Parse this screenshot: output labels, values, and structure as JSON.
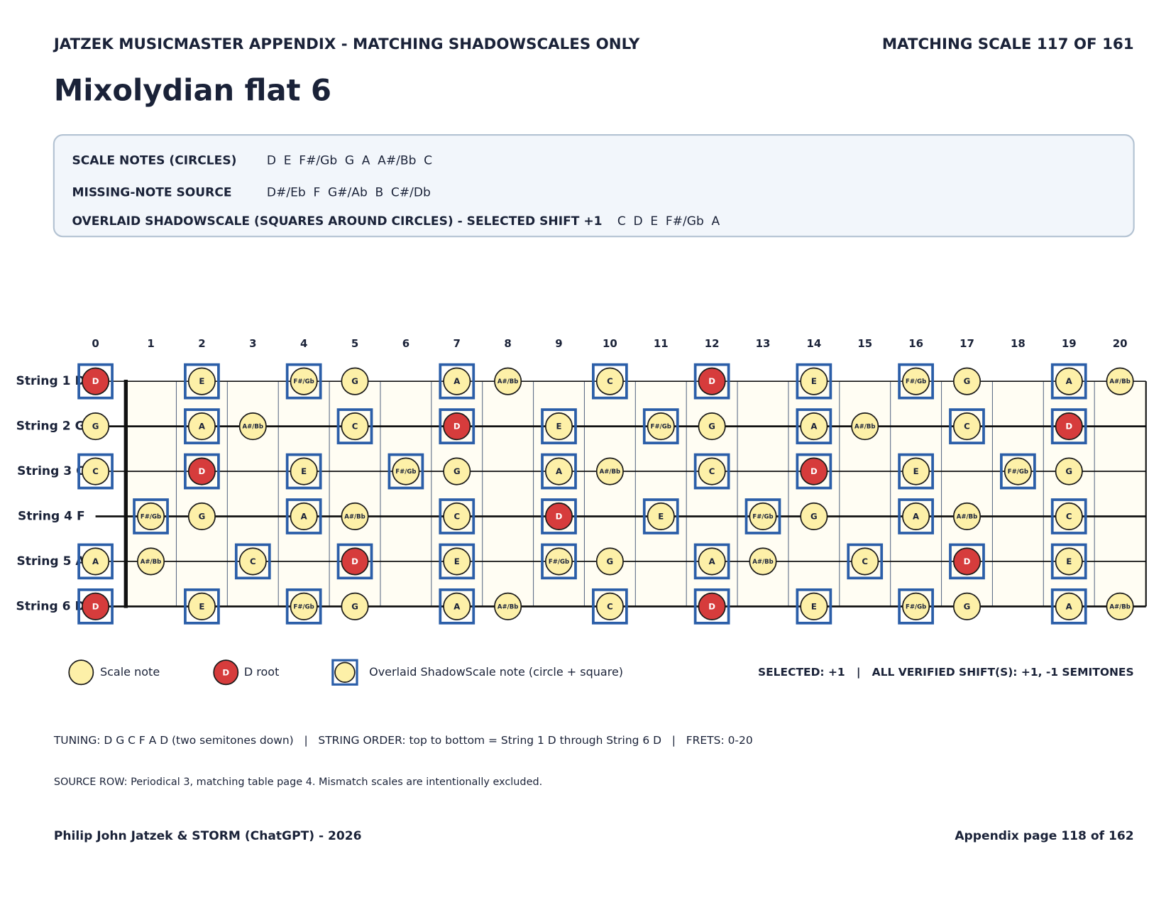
{
  "header": {
    "left": "JATZEK MUSICMASTER APPENDIX - MATCHING SHADOWSCALES ONLY",
    "right": "MATCHING SCALE 117 OF 161"
  },
  "title": "Mixolydian flat 6",
  "info": {
    "scale_notes": {
      "label": "SCALE NOTES (CIRCLES)",
      "notes": [
        "D",
        "E",
        "F#/Gb",
        "G",
        "A",
        "A#/Bb",
        "C"
      ]
    },
    "missing": {
      "label": "MISSING-NOTE SOURCE",
      "notes": [
        "D#/Eb",
        "F",
        "G#/Ab",
        "B",
        "C#/Db"
      ]
    },
    "overlay": {
      "label": "OVERLAID SHADOWSCALE (SQUARES AROUND CIRCLES) - SELECTED SHIFT +1",
      "notes": [
        "C",
        "D",
        "E",
        "F#/Gb",
        "A"
      ]
    }
  },
  "fretboard": {
    "frets": [
      0,
      1,
      2,
      3,
      4,
      5,
      6,
      7,
      8,
      9,
      10,
      11,
      12,
      13,
      14,
      15,
      16,
      17,
      18,
      19,
      20
    ],
    "strings": [
      {
        "label": "String 1 D",
        "notes": [
          "D",
          null,
          "E",
          null,
          "F#/Gb",
          "G",
          null,
          "A",
          "A#/Bb",
          null,
          "C",
          null,
          "D",
          null,
          "E",
          null,
          "F#/Gb",
          "G",
          null,
          "A",
          "A#/Bb"
        ]
      },
      {
        "label": "String 2 G",
        "notes": [
          "G",
          null,
          "A",
          "A#/Bb",
          null,
          "C",
          null,
          "D",
          null,
          "E",
          null,
          "F#/Gb",
          "G",
          null,
          "A",
          "A#/Bb",
          null,
          "C",
          null,
          "D",
          null
        ]
      },
      {
        "label": "String 3 C",
        "notes": [
          "C",
          null,
          "D",
          null,
          "E",
          null,
          "F#/Gb",
          "G",
          null,
          "A",
          "A#/Bb",
          null,
          "C",
          null,
          "D",
          null,
          "E",
          null,
          "F#/Gb",
          "G",
          null
        ]
      },
      {
        "label": "String 4 F",
        "notes": [
          null,
          "F#/Gb",
          "G",
          null,
          "A",
          "A#/Bb",
          null,
          "C",
          null,
          "D",
          null,
          "E",
          null,
          "F#/Gb",
          "G",
          null,
          "A",
          "A#/Bb",
          null,
          "C",
          null
        ]
      },
      {
        "label": "String 5 A",
        "notes": [
          "A",
          "A#/Bb",
          null,
          "C",
          null,
          "D",
          null,
          "E",
          null,
          "F#/Gb",
          "G",
          null,
          "A",
          "A#/Bb",
          null,
          "C",
          null,
          "D",
          null,
          "E",
          null
        ]
      },
      {
        "label": "String 6 D",
        "notes": [
          "D",
          null,
          "E",
          null,
          "F#/Gb",
          "G",
          null,
          "A",
          "A#/Bb",
          null,
          "C",
          null,
          "D",
          null,
          "E",
          null,
          "F#/Gb",
          "G",
          null,
          "A",
          "A#/Bb"
        ]
      }
    ]
  },
  "legend": {
    "scale": "Scale note",
    "root_symbol": "D",
    "root": "D root",
    "overlay": "Overlaid ShadowScale note (circle + square)",
    "shifts": "SELECTED: +1   |   ALL VERIFIED SHIFT(S): +1, -1 SEMITONES"
  },
  "footer": {
    "tuning": "TUNING: D G C F A D (two semitones down)   |   STRING ORDER: top to bottom = String 1 D through String 6 D   |   FRETS: 0-20",
    "source": "SOURCE ROW: Periodical 3, matching table page 4. Mismatch scales are intentionally excluded.",
    "author": "Philip John Jatzek & STORM (ChatGPT) - 2026",
    "page": "Appendix page 118 of 162"
  }
}
